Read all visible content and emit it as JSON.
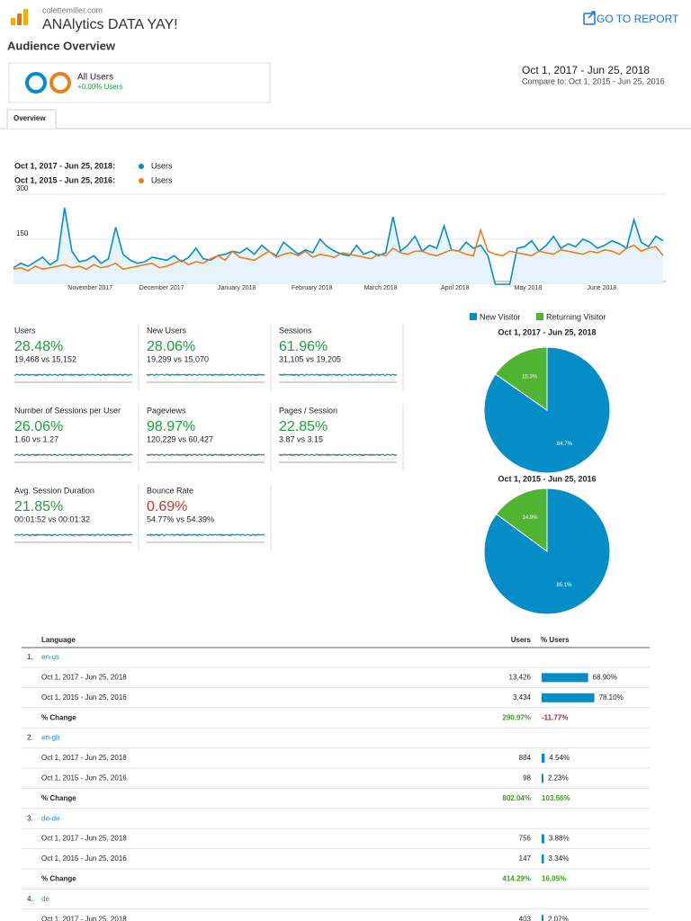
{
  "header": {
    "site": "colettemiller.com",
    "title": "ANAlytics DATA YAY!",
    "action": "GO TO REPORT"
  },
  "report": {
    "title": "Audience Overview",
    "segment": {
      "name": "All Users",
      "change": "+0.00% Users"
    },
    "date_range": "Oct 1, 2017 - Jun 25, 2018",
    "compare": "Compare to: Oct 1, 2015 - Jun 25, 2016",
    "tab": "Overview"
  },
  "line_chart": {
    "type": "line",
    "legend": [
      {
        "period": "Oct 1, 2017 - Jun 25, 2018:",
        "name": "Users",
        "color": "#058dc7"
      },
      {
        "period": "Oct 1, 2015 - Jun 25, 2016:",
        "name": "Users",
        "color": "#ed7e17"
      }
    ],
    "xlim": [
      0,
      89
    ],
    "xticks": [
      {
        "value": 10.5,
        "label": "November 2017"
      },
      {
        "value": 20.3,
        "label": "December 2017"
      },
      {
        "value": 30.6,
        "label": "January 2018"
      },
      {
        "value": 40.9,
        "label": "February 2018"
      },
      {
        "value": 50.3,
        "label": "March 2018"
      },
      {
        "value": 60.5,
        "label": "April 2018"
      },
      {
        "value": 70.5,
        "label": "May 2018"
      },
      {
        "value": 80.6,
        "label": "June 2018"
      }
    ],
    "ylim": [
      0,
      300
    ],
    "yticks": [
      150,
      300
    ],
    "grid": true,
    "series": [
      {
        "values": [
          55,
          70,
          60,
          75,
          90,
          65,
          80,
          255,
          110,
          75,
          80,
          95,
          70,
          85,
          190,
          100,
          80,
          70,
          75,
          90,
          85,
          80,
          95,
          75,
          90,
          120,
          85,
          80,
          95,
          100,
          110,
          105,
          120,
          100,
          130,
          110,
          95,
          140,
          120,
          100,
          115,
          105,
          150,
          125,
          110,
          100,
          95,
          130,
          100,
          110,
          95,
          105,
          225,
          110,
          130,
          160,
          110,
          130,
          120,
          195,
          115,
          110,
          140,
          120,
          130,
          95,
          0,
          0,
          0,
          120,
          125,
          145,
          110,
          130,
          160,
          120,
          135,
          125,
          150,
          140,
          120,
          130,
          145,
          135,
          120,
          215,
          140,
          125,
          160,
          145
        ]
      },
      {
        "values": [
          50,
          55,
          45,
          60,
          50,
          55,
          60,
          65,
          55,
          60,
          50,
          65,
          55,
          60,
          70,
          50,
          55,
          60,
          65,
          70,
          55,
          60,
          70,
          80,
          65,
          75,
          70,
          85,
          95,
          80,
          110,
          90,
          85,
          80,
          95,
          110,
          90,
          100,
          105,
          95,
          110,
          90,
          100,
          95,
          90,
          105,
          100,
          95,
          90,
          85,
          100,
          95,
          120,
          105,
          100,
          110,
          110,
          100,
          95,
          105,
          115,
          110,
          100,
          95,
          180,
          110,
          100,
          95,
          110,
          105,
          100,
          95,
          110,
          105,
          100,
          115,
          110,
          105,
          100,
          110,
          105,
          115,
          110,
          100,
          120,
          130,
          110,
          120,
          125,
          95
        ]
      }
    ]
  },
  "scorecards": [
    {
      "name": "Users",
      "change": "28.48%",
      "compare": "19,468 vs 15,152",
      "color": "#1e9e3e"
    },
    {
      "name": "New Users",
      "change": "28.06%",
      "compare": "19,299 vs 15,070",
      "color": "#1e9e3e"
    },
    {
      "name": "Sessions",
      "change": "61.96%",
      "compare": "31,105 vs 19,205",
      "color": "#1e9e3e"
    },
    {
      "name": "Number of Sessions per User",
      "change": "26.06%",
      "compare": "1.60 vs 1.27",
      "color": "#1e9e3e"
    },
    {
      "name": "Pageviews",
      "change": "98.97%",
      "compare": "120,229 vs 60,427",
      "color": "#1e9e3e"
    },
    {
      "name": "Pages / Session",
      "change": "22.85%",
      "compare": "3.87 vs 3.15",
      "color": "#1e9e3e"
    },
    {
      "name": "Avg. Session Duration",
      "change": "21.85%",
      "compare": "00:01:52 vs 00:01:32",
      "color": "#1e9e3e"
    },
    {
      "name": "Bounce Rate",
      "change": "0.69%",
      "compare": "54.77% vs 54.39%",
      "color": "#d93025"
    }
  ],
  "pie_charts": {
    "type": "pie",
    "legend": [
      {
        "name": "New Visitor",
        "color": "#058dc7"
      },
      {
        "name": "Returning Visitor",
        "color": "#50b432"
      }
    ],
    "charts": [
      {
        "title": "Oct 1, 2017 - Jun 25, 2018",
        "values": [
          84.7,
          15.3
        ],
        "value_labels": [
          "84.7%",
          "15.3%"
        ]
      },
      {
        "title": "Oct 1, 2015 - Jun 25, 2016",
        "values": [
          85.1,
          14.9
        ],
        "value_labels": [
          "85.1%",
          "14.9%"
        ]
      }
    ]
  },
  "table": {
    "columns": [
      "Language",
      "Users",
      "% Users"
    ],
    "groups": [
      {
        "index": "1.",
        "language": "en-us",
        "rows": [
          {
            "label": "Oct 1, 2017 - Jun 25, 2018",
            "users": "13,426",
            "share": 68.9,
            "share_label": "68.90%"
          },
          {
            "label": "Oct 1, 2015 - Jun 25, 2016",
            "users": "3,434",
            "share": 78.1,
            "share_label": "78.10%"
          }
        ],
        "change": {
          "label": "% Change",
          "users": "290.97%",
          "share": "-11.77%"
        }
      },
      {
        "index": "2.",
        "language": "en-gb",
        "rows": [
          {
            "label": "Oct 1, 2017 - Jun 25, 2018",
            "users": "884",
            "share": 4.54,
            "share_label": "4.54%"
          },
          {
            "label": "Oct 1, 2015 - Jun 25, 2016",
            "users": "98",
            "share": 2.23,
            "share_label": "2.23%"
          }
        ],
        "change": {
          "label": "% Change",
          "users": "802.04%",
          "share": "103.56%"
        }
      },
      {
        "index": "3.",
        "language": "de-de",
        "rows": [
          {
            "label": "Oct 1, 2017 - Jun 25, 2018",
            "users": "756",
            "share": 3.88,
            "share_label": "3.88%"
          },
          {
            "label": "Oct 1, 2015 - Jun 25, 2016",
            "users": "147",
            "share": 3.34,
            "share_label": "3.34%"
          }
        ],
        "change": {
          "label": "% Change",
          "users": "414.29%",
          "share": "16.05%"
        }
      },
      {
        "index": "4.",
        "language": "de",
        "rows": [
          {
            "label": "Oct 1, 2017 - Jun 25, 2018",
            "users": "403",
            "share": 2.07,
            "share_label": "2.07%"
          }
        ]
      }
    ]
  }
}
